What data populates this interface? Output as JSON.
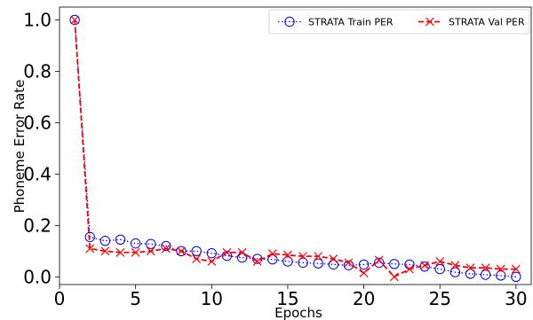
{
  "chart_data": {
    "type": "line",
    "title": "",
    "xlabel": "Epochs",
    "ylabel": "Phoneme Error Rate",
    "xlim": [
      0,
      31
    ],
    "ylim": [
      -0.03,
      1.05
    ],
    "x_ticks": [
      0,
      5,
      10,
      15,
      20,
      25,
      30
    ],
    "y_ticks": [
      0.0,
      0.2,
      0.4,
      0.6,
      0.8,
      1.0
    ],
    "x_tick_labels": [
      "0",
      "5",
      "10",
      "15",
      "20",
      "25",
      "30"
    ],
    "y_tick_labels": [
      "0.0",
      "0.2",
      "0.4",
      "0.6",
      "0.8",
      "1.0"
    ],
    "grid": false,
    "legend_position": "top-right",
    "x": [
      1,
      2,
      3,
      4,
      5,
      6,
      7,
      8,
      9,
      10,
      11,
      12,
      13,
      14,
      15,
      16,
      17,
      18,
      19,
      20,
      21,
      22,
      23,
      24,
      25,
      26,
      27,
      28,
      29,
      30
    ],
    "series": [
      {
        "name": "STRATA Train PER",
        "color": "#0000ff",
        "line_style": "dotted",
        "marker": "circle",
        "values": [
          1.0,
          0.155,
          0.14,
          0.145,
          0.13,
          0.128,
          0.12,
          0.1,
          0.1,
          0.092,
          0.082,
          0.075,
          0.07,
          0.068,
          0.06,
          0.055,
          0.052,
          0.048,
          0.045,
          0.048,
          0.055,
          0.05,
          0.048,
          0.04,
          0.03,
          0.018,
          0.012,
          0.008,
          0.005,
          0.0
        ]
      },
      {
        "name": "STRATA Val PER",
        "color": "#ff0000",
        "line_style": "dashed",
        "marker": "x",
        "values": [
          1.0,
          0.11,
          0.1,
          0.095,
          0.095,
          0.1,
          0.11,
          0.1,
          0.07,
          0.06,
          0.095,
          0.095,
          0.06,
          0.09,
          0.085,
          0.08,
          0.08,
          0.07,
          0.055,
          0.015,
          0.065,
          0.0,
          0.03,
          0.045,
          0.06,
          0.045,
          0.035,
          0.035,
          0.03,
          0.03
        ]
      }
    ]
  }
}
